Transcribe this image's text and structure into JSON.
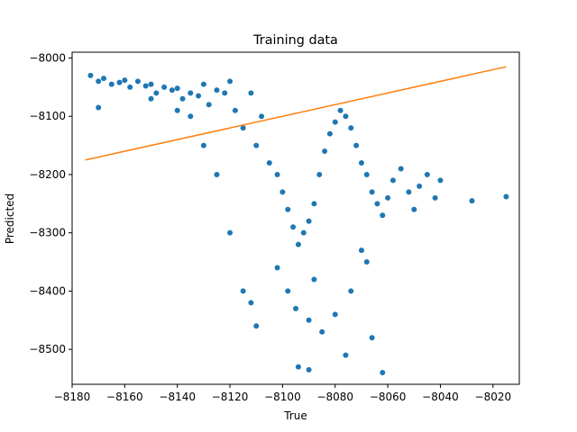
{
  "chart_data": {
    "type": "scatter",
    "title": "Training data",
    "xlabel": "True",
    "ylabel": "Predicted",
    "xlim": [
      -8180,
      -8010
    ],
    "ylim": [
      -8560,
      -7990
    ],
    "xticks": [
      -8180,
      -8160,
      -8140,
      -8120,
      -8100,
      -8080,
      -8060,
      -8040,
      -8020
    ],
    "yticks": [
      -8000,
      -8100,
      -8200,
      -8300,
      -8400,
      -8500
    ],
    "xtick_labels": [
      "−8180",
      "−8160",
      "−8140",
      "−8120",
      "−8100",
      "−8080",
      "−8060",
      "−8040",
      "−8020"
    ],
    "ytick_labels": [
      "−8000",
      "−8100",
      "−8200",
      "−8300",
      "−8400",
      "−8500"
    ],
    "grid": false,
    "series": [
      {
        "kind": "scatter",
        "color": "#1f77b4",
        "approx_point_count": "dense cloud",
        "points": [
          [
            -8173,
            -8030
          ],
          [
            -8170,
            -8040
          ],
          [
            -8168,
            -8035
          ],
          [
            -8165,
            -8045
          ],
          [
            -8162,
            -8042
          ],
          [
            -8160,
            -8038
          ],
          [
            -8158,
            -8050
          ],
          [
            -8155,
            -8040
          ],
          [
            -8152,
            -8048
          ],
          [
            -8150,
            -8045
          ],
          [
            -8148,
            -8060
          ],
          [
            -8145,
            -8050
          ],
          [
            -8142,
            -8055
          ],
          [
            -8140,
            -8052
          ],
          [
            -8138,
            -8070
          ],
          [
            -8135,
            -8060
          ],
          [
            -8132,
            -8065
          ],
          [
            -8130,
            -8045
          ],
          [
            -8128,
            -8080
          ],
          [
            -8125,
            -8055
          ],
          [
            -8122,
            -8060
          ],
          [
            -8120,
            -8040
          ],
          [
            -8118,
            -8090
          ],
          [
            -8115,
            -8120
          ],
          [
            -8112,
            -8060
          ],
          [
            -8110,
            -8150
          ],
          [
            -8108,
            -8100
          ],
          [
            -8105,
            -8180
          ],
          [
            -8102,
            -8200
          ],
          [
            -8100,
            -8230
          ],
          [
            -8098,
            -8260
          ],
          [
            -8096,
            -8290
          ],
          [
            -8094,
            -8320
          ],
          [
            -8092,
            -8300
          ],
          [
            -8090,
            -8280
          ],
          [
            -8088,
            -8250
          ],
          [
            -8086,
            -8200
          ],
          [
            -8084,
            -8160
          ],
          [
            -8082,
            -8130
          ],
          [
            -8080,
            -8110
          ],
          [
            -8078,
            -8090
          ],
          [
            -8076,
            -8100
          ],
          [
            -8074,
            -8120
          ],
          [
            -8072,
            -8150
          ],
          [
            -8070,
            -8180
          ],
          [
            -8068,
            -8200
          ],
          [
            -8066,
            -8230
          ],
          [
            -8064,
            -8250
          ],
          [
            -8062,
            -8270
          ],
          [
            -8060,
            -8240
          ],
          [
            -8058,
            -8210
          ],
          [
            -8055,
            -8190
          ],
          [
            -8052,
            -8230
          ],
          [
            -8050,
            -8260
          ],
          [
            -8048,
            -8220
          ],
          [
            -8045,
            -8200
          ],
          [
            -8042,
            -8240
          ],
          [
            -8040,
            -8210
          ],
          [
            -8028,
            -8245
          ],
          [
            -8015,
            -8238
          ],
          [
            -8102,
            -8360
          ],
          [
            -8098,
            -8400
          ],
          [
            -8095,
            -8430
          ],
          [
            -8090,
            -8450
          ],
          [
            -8088,
            -8380
          ],
          [
            -8094,
            -8530
          ],
          [
            -8090,
            -8535
          ],
          [
            -8076,
            -8510
          ],
          [
            -8066,
            -8480
          ],
          [
            -8062,
            -8540
          ],
          [
            -8110,
            -8460
          ],
          [
            -8115,
            -8400
          ],
          [
            -8112,
            -8420
          ],
          [
            -8085,
            -8470
          ],
          [
            -8080,
            -8440
          ],
          [
            -8074,
            -8400
          ],
          [
            -8070,
            -8330
          ],
          [
            -8068,
            -8350
          ],
          [
            -8120,
            -8300
          ],
          [
            -8125,
            -8200
          ],
          [
            -8130,
            -8150
          ],
          [
            -8135,
            -8100
          ],
          [
            -8140,
            -8090
          ],
          [
            -8150,
            -8070
          ],
          [
            -8170,
            -8085
          ]
        ]
      },
      {
        "kind": "line",
        "color": "#ff7f0e",
        "x": [
          -8175,
          -8015
        ],
        "y": [
          -8175,
          -8015
        ]
      }
    ]
  }
}
